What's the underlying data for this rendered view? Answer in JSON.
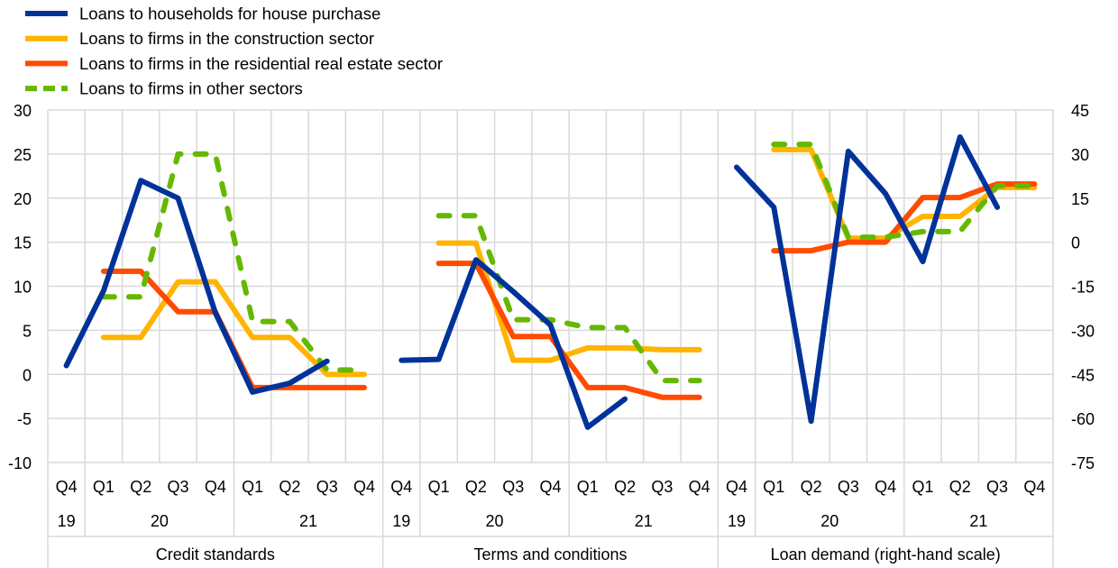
{
  "chart_data": {
    "type": "line",
    "legend": {
      "placement": "top-left"
    },
    "grid": true,
    "left_axis": {
      "ylim": [
        -10,
        30
      ],
      "ticks": [
        30,
        25,
        20,
        15,
        10,
        5,
        0,
        -5,
        -10
      ]
    },
    "right_axis": {
      "ylim": [
        -75,
        45
      ],
      "ticks": [
        45,
        30,
        15,
        0,
        -15,
        -30,
        -45,
        -60,
        -75
      ]
    },
    "quarters": [
      "Q4",
      "Q1",
      "Q2",
      "Q3",
      "Q4",
      "Q1",
      "Q2",
      "Q3",
      "Q4"
    ],
    "years": [
      "19",
      "20",
      "21"
    ],
    "series_styles": [
      {
        "name": "Loans to households for house purchase",
        "color": "#003299",
        "dashed": false
      },
      {
        "name": "Loans to firms in the construction sector",
        "color": "#FFB400",
        "dashed": false
      },
      {
        "name": "Loans to firms in the residential real estate sector",
        "color": "#FF4B00",
        "dashed": false
      },
      {
        "name": "Loans to firms in other sectors",
        "color": "#65B800",
        "dashed": true
      }
    ],
    "panels": [
      {
        "label": "Credit standards",
        "axis": "left",
        "series": [
          [
            1,
            9.5,
            22,
            20,
            7,
            -2,
            -1,
            1.5,
            null
          ],
          [
            null,
            4.2,
            4.2,
            10.5,
            10.5,
            4.2,
            4.2,
            0,
            0
          ],
          [
            null,
            11.7,
            11.7,
            7.1,
            7.1,
            -1.5,
            -1.5,
            -1.5,
            -1.5
          ],
          [
            null,
            8.8,
            8.8,
            25,
            25,
            6,
            6,
            0.5,
            0.5
          ]
        ]
      },
      {
        "label": "Terms and conditions",
        "axis": "left",
        "series": [
          [
            1.6,
            1.7,
            13,
            9.4,
            5.6,
            -6,
            -2.8,
            null,
            null
          ],
          [
            null,
            14.9,
            14.9,
            1.6,
            1.6,
            3.0,
            3.0,
            2.8,
            2.8
          ],
          [
            null,
            12.6,
            12.6,
            4.3,
            4.3,
            -1.5,
            -1.5,
            -2.6,
            -2.6
          ],
          [
            null,
            18,
            18,
            6.2,
            6.2,
            5.3,
            5.3,
            -0.7,
            -0.7
          ]
        ]
      },
      {
        "label": "Loan demand (right-hand scale)",
        "axis": "right",
        "series": [
          [
            25.5,
            11.9,
            -60.9,
            30.9,
            16.5,
            -6.6,
            35.8,
            11.9,
            null
          ],
          [
            null,
            31.5,
            31.5,
            1.4,
            1.4,
            8.8,
            8.8,
            18.6,
            18.6
          ],
          [
            null,
            -2.9,
            -2.9,
            0,
            0,
            15.2,
            15.2,
            19.8,
            19.8
          ],
          [
            null,
            33.3,
            33.3,
            1.7,
            1.7,
            3.6,
            3.6,
            19.2,
            19.2
          ]
        ]
      }
    ]
  }
}
